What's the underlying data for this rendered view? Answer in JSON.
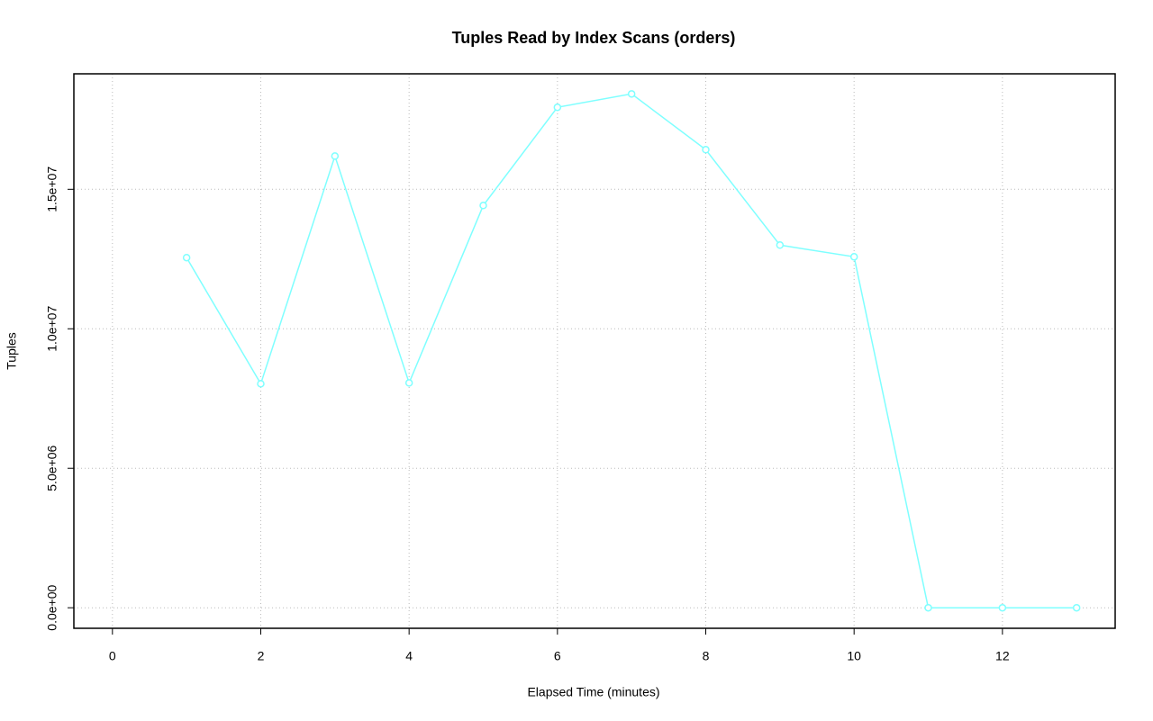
{
  "chart_data": {
    "type": "line",
    "title": "Tuples Read by Index Scans (orders)",
    "x_label": "Elapsed Time (minutes)",
    "y_label": "Tuples",
    "x": [
      1,
      2,
      3,
      4,
      5,
      6,
      7,
      8,
      9,
      10,
      11,
      12,
      13
    ],
    "series": [
      {
        "name": "orders",
        "color": "#7fffff",
        "values": [
          12550000,
          8030000,
          16190000,
          8060000,
          14420000,
          17940000,
          18420000,
          16420000,
          13000000,
          12580000,
          0,
          0,
          0
        ]
      }
    ],
    "xlim": [
      -0.52,
      13.52
    ],
    "ylim": [
      -736000,
      19140000
    ],
    "xticks": [
      0,
      2,
      4,
      6,
      8,
      10,
      12
    ],
    "yticks": [
      {
        "value": 0,
        "label": "0.0e+00"
      },
      {
        "value": 5000000,
        "label": "5.0e+06"
      },
      {
        "value": 10000000,
        "label": "1.0e+07"
      },
      {
        "value": 15000000,
        "label": "1.5e+07"
      }
    ],
    "grid": true
  }
}
